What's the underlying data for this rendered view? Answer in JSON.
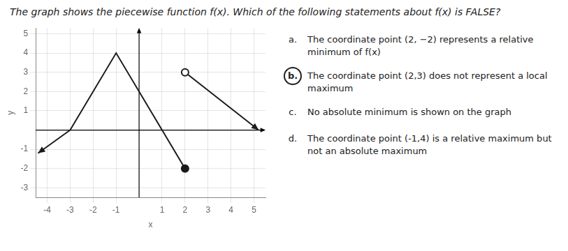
{
  "chart_data": {
    "type": "line",
    "title": "The graph shows the piecewise function f(x). Which of the following statements about  f(x) is FALSE?",
    "x_label": "x",
    "y_label": "y",
    "xlim": [
      -4.5,
      5.5
    ],
    "ylim": [
      -3.5,
      5.3
    ],
    "xticks": [
      -4,
      -3,
      -2,
      -1,
      1,
      2,
      3,
      4,
      5
    ],
    "yticks": [
      -3,
      -2,
      -1,
      1,
      2,
      3,
      4,
      5
    ],
    "grid": true,
    "series": [
      {
        "x": [
          -3.0,
          -4.4
        ],
        "values": [
          0.0,
          -1.2
        ],
        "color": "#1a1a1a",
        "marker": "arrow",
        "line_style": "solid"
      },
      {
        "x": [
          -3.0,
          -1.0,
          1.0
        ],
        "values": [
          0.0,
          4.0,
          0.0
        ],
        "color": "#1a1a1a",
        "marker": "none",
        "line_style": "solid"
      },
      {
        "x": [
          1.0,
          2.0
        ],
        "values": [
          0.0,
          -2.0
        ],
        "color": "#1a1a1a",
        "marker": "none",
        "line_style": "solid"
      },
      {
        "x": [
          2.0
        ],
        "values": [
          -2.0
        ],
        "color": "#1a1a1a",
        "type": "scatter",
        "marker": "filled_circle"
      },
      {
        "x": [
          2.0
        ],
        "values": [
          3.0
        ],
        "color": "#1a1a1a",
        "type": "scatter",
        "marker": "open_circle"
      },
      {
        "x": [
          2.0,
          5.2
        ],
        "values": [
          3.0,
          0.0
        ],
        "color": "#1a1a1a",
        "marker": "arrow",
        "line_style": "solid"
      }
    ],
    "annotations": [
      {
        "label": "a.",
        "text": "The coordinate point (2, −2) represents a relative minimum of f(x)",
        "circled": false
      },
      {
        "label": "b.",
        "text": "The coordinate point (2,3) does not represent a local maximum",
        "circled": true
      },
      {
        "label": "c.",
        "text": "No absolute minimum is shown on the graph",
        "circled": false
      },
      {
        "label": "d.",
        "text": "The coordinate point (-1,4) is a relative maximum but not an absolute maximum",
        "circled": false
      }
    ]
  }
}
